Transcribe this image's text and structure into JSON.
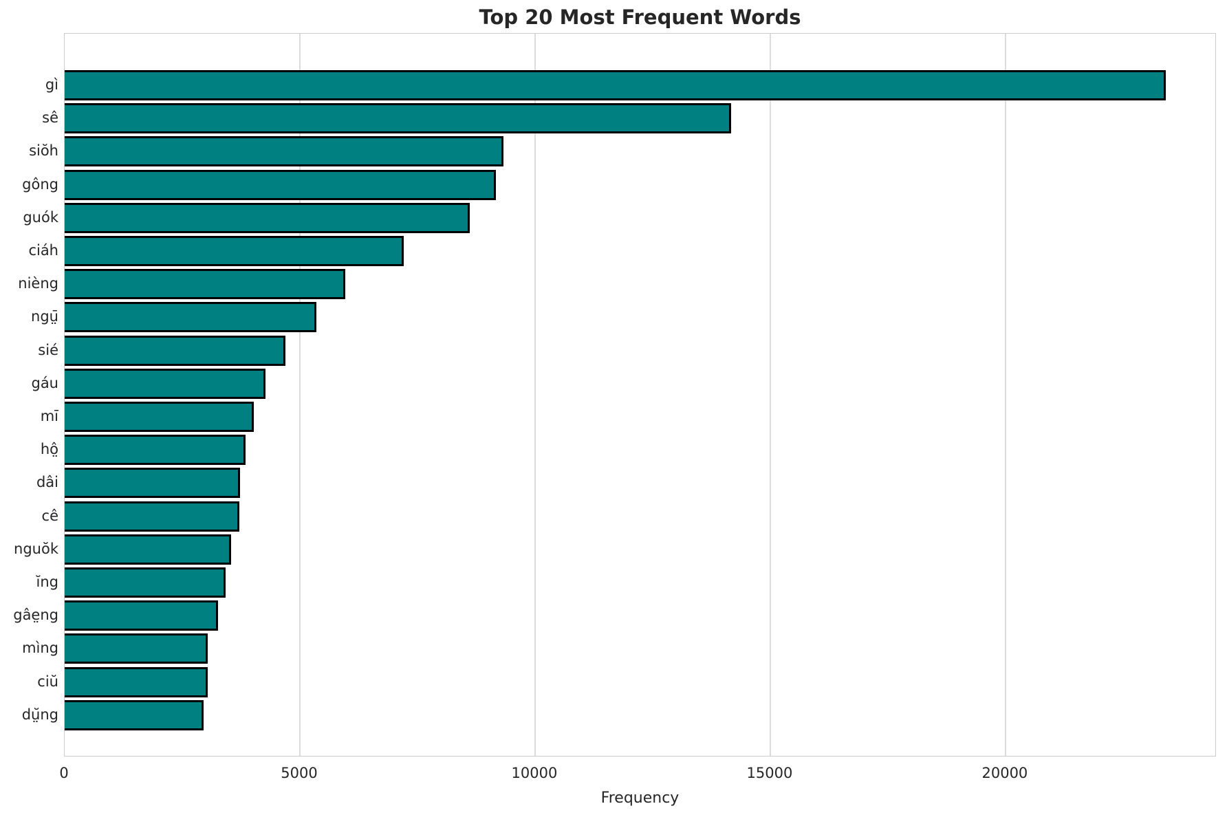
{
  "chart_data": {
    "type": "bar",
    "orientation": "horizontal",
    "title": "Top 20 Most Frequent Words",
    "xlabel": "Frequency",
    "ylabel": "",
    "categories": [
      "gì",
      "sê",
      "siŏh",
      "gông",
      "guók",
      "ciáh",
      "nièng",
      "ngṳ̄",
      "sié",
      "gáu",
      "mī",
      "hô̤",
      "dâi",
      "cê",
      "nguŏk",
      "ĭng",
      "gâe̤ng",
      "mìng",
      "ciŭ",
      "dṳ̆ng"
    ],
    "values": [
      23360,
      14120,
      9290,
      9120,
      8570,
      7160,
      5920,
      5310,
      4650,
      4230,
      3980,
      3800,
      3680,
      3670,
      3500,
      3380,
      3210,
      2990,
      2990,
      2910
    ],
    "xlim": [
      0,
      24490
    ],
    "xticks": [
      0,
      5000,
      10000,
      15000,
      20000
    ],
    "grid": true,
    "legend": "none",
    "bar_color": "#008080",
    "bar_edge_color": "#000000",
    "gridline_color": "#dcdcdc",
    "text_color": "#262626"
  }
}
